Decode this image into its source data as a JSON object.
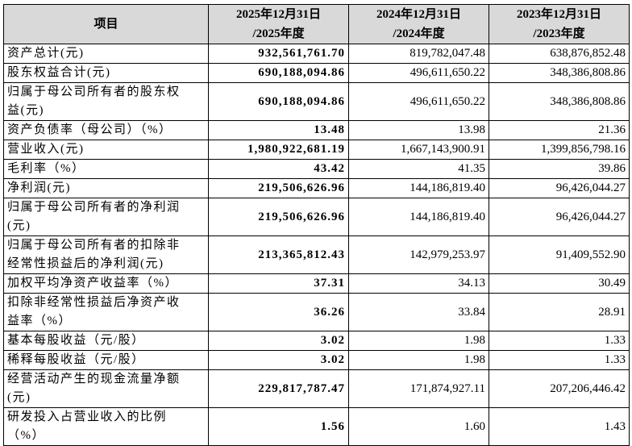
{
  "table": {
    "header": [
      "项目",
      "2025年12月31日\n/2025年度",
      "2024年12月31日\n/2024年度",
      "2023年12月31日\n/2023年度"
    ],
    "rows": [
      [
        "资产总计(元)",
        "932,561,761.70",
        "819,782,047.48",
        "638,876,852.48"
      ],
      [
        "股东权益合计(元)",
        "690,188,094.86",
        "496,611,650.22",
        "348,386,808.86"
      ],
      [
        "归属于母公司所有者的股东权\n益(元)",
        "690,188,094.86",
        "496,611,650.22",
        "348,386,808.86"
      ],
      [
        "资产负债率（母公司）（%）",
        "13.48",
        "13.98",
        "21.36"
      ],
      [
        "营业收入(元)",
        "1,980,922,681.19",
        "1,667,143,900.91",
        "1,399,856,798.16"
      ],
      [
        "毛利率（%）",
        "43.42",
        "41.35",
        "39.86"
      ],
      [
        "净利润(元)",
        "219,506,626.96",
        "144,186,819.40",
        "96,426,044.27"
      ],
      [
        "归属于母公司所有者的净利润\n(元)",
        "219,506,626.96",
        "144,186,819.40",
        "96,426,044.27"
      ],
      [
        "归属于母公司所有者的扣除非\n经常性损益后的净利润(元)",
        "213,365,812.43",
        "142,979,253.97",
        "91,409,552.90"
      ],
      [
        "加权平均净资产收益率（%）",
        "37.31",
        "34.13",
        "30.49"
      ],
      [
        "扣除非经常性损益后净资产收\n益率（%）",
        "36.26",
        "33.84",
        "28.91"
      ],
      [
        "基本每股收益（元/股）",
        "3.02",
        "1.98",
        "1.33"
      ],
      [
        "稀释每股收益（元/股）",
        "3.02",
        "1.98",
        "1.33"
      ],
      [
        "经营活动产生的现金流量净额\n(元)",
        "229,817,787.47",
        "171,874,927.11",
        "207,206,446.42"
      ],
      [
        "研发投入占营业收入的比例\n（%）",
        "1.56",
        "1.60",
        "1.43"
      ]
    ]
  }
}
